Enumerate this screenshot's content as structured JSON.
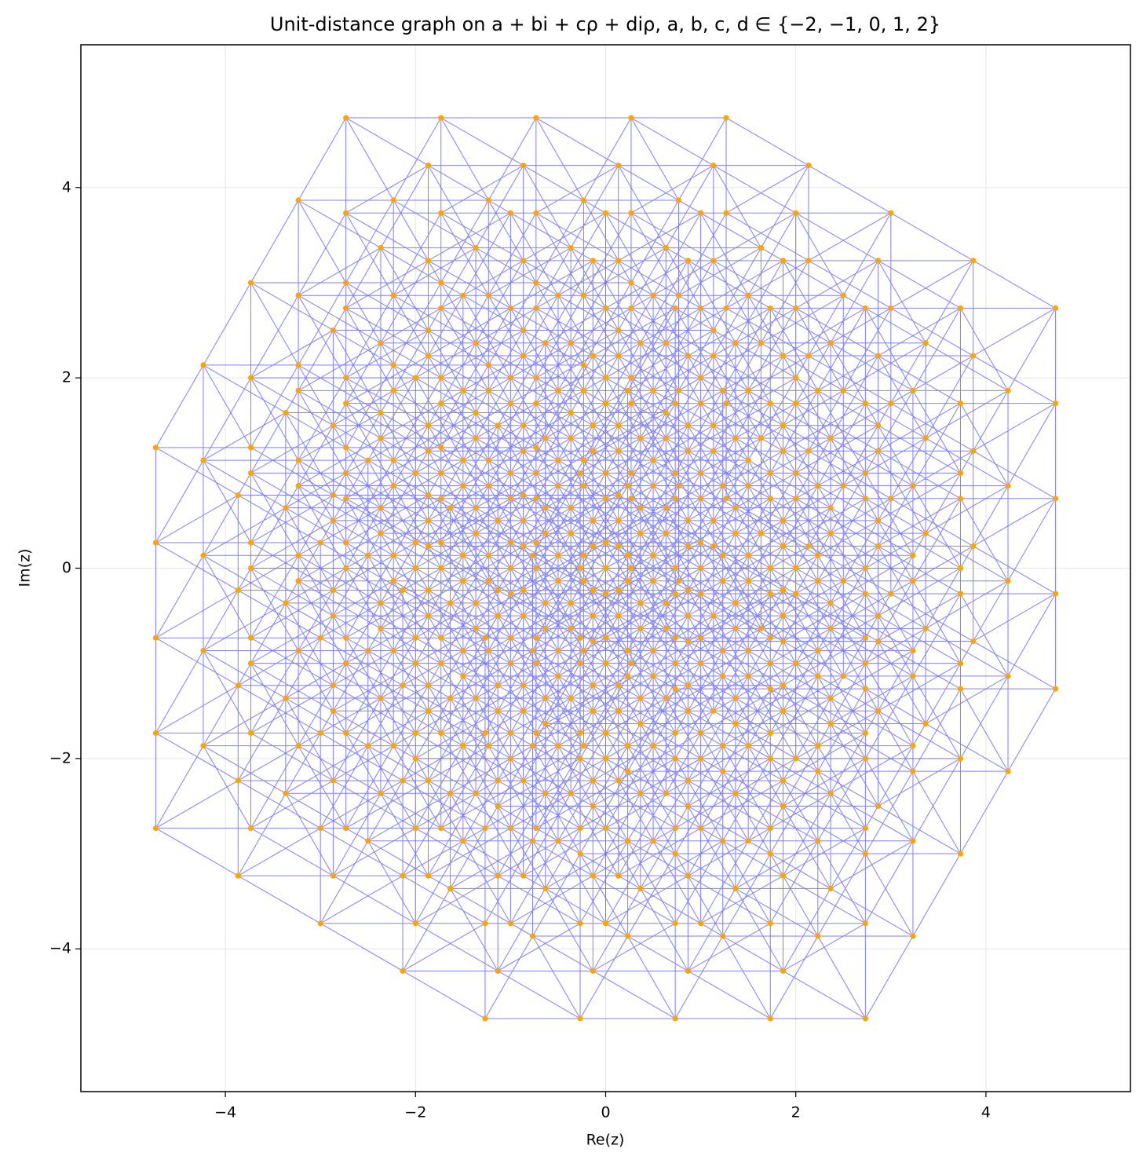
{
  "chart_data": {
    "type": "graph",
    "title": "Unit-distance graph on a + bi + cρ + diρ, a, b, c, d ∈ {−2, −1, 0, 1, 2}",
    "coefficients": [
      -2,
      -1,
      0,
      1,
      2
    ],
    "x_label": "Re(z)",
    "y_label": "Im(z)",
    "xlim": [
      -5.52,
      5.52
    ],
    "ylim": [
      -5.5,
      5.5
    ],
    "xticks": [
      {
        "value": -4,
        "label": "−4"
      },
      {
        "value": -2,
        "label": "−2"
      },
      0,
      2,
      4
    ],
    "yticks": [
      {
        "value": -4,
        "label": "−4"
      },
      {
        "value": -2,
        "label": "−2"
      },
      0,
      2,
      4
    ],
    "grid": true,
    "edge_color": "#0000ff",
    "point_color": "#ffa500"
  }
}
